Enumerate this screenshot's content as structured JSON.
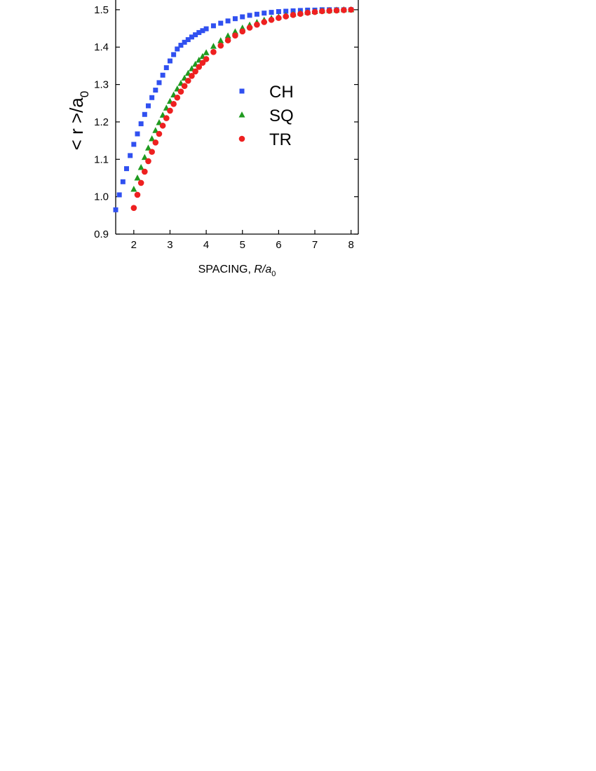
{
  "chart_data": {
    "type": "scatter",
    "x_label": {
      "text": "SPACING, ",
      "italic": "R/a",
      "subscript": "0"
    },
    "y_label": {
      "text": "< r >/a",
      "subscript": "0"
    },
    "xlim": [
      1.5,
      8.2
    ],
    "ylim": [
      0.9,
      1.526
    ],
    "xticks": [
      2,
      3,
      4,
      5,
      6,
      7,
      8
    ],
    "yticks": [
      0.9,
      {
        "value": 1,
        "label": "1.0"
      },
      1.1,
      1.2,
      1.3,
      1.4,
      1.5
    ],
    "series": [
      {
        "name": "CH",
        "color": "#3050f0",
        "marker": "square",
        "x": [
          1.5,
          1.6,
          1.7,
          1.8,
          1.9,
          2.0,
          2.1,
          2.2,
          2.3,
          2.4,
          2.5,
          2.6,
          2.7,
          2.8,
          2.9,
          3.0,
          3.1,
          3.2,
          3.3,
          3.4,
          3.5,
          3.6,
          3.7,
          3.8,
          3.9,
          4.0,
          4.2,
          4.4,
          4.6,
          4.8,
          5.0,
          5.2,
          5.4,
          5.6,
          5.8,
          6.0,
          6.2,
          6.4,
          6.6,
          6.8,
          7.0,
          7.2,
          7.4,
          7.6,
          7.8,
          8.0
        ],
        "values": [
          0.965,
          1.005,
          1.04,
          1.075,
          1.11,
          1.14,
          1.168,
          1.195,
          1.22,
          1.243,
          1.265,
          1.285,
          1.305,
          1.325,
          1.345,
          1.363,
          1.38,
          1.395,
          1.405,
          1.413,
          1.42,
          1.427,
          1.433,
          1.439,
          1.444,
          1.449,
          1.457,
          1.464,
          1.47,
          1.476,
          1.481,
          1.485,
          1.488,
          1.491,
          1.493,
          1.495,
          1.496,
          1.497,
          1.498,
          1.499,
          1.499,
          1.5,
          1.5,
          1.5,
          1.5,
          1.5
        ]
      },
      {
        "name": "SQ",
        "color": "#1f9a1f",
        "marker": "triangle",
        "x": [
          2.0,
          2.1,
          2.2,
          2.3,
          2.4,
          2.5,
          2.6,
          2.7,
          2.8,
          2.9,
          3.0,
          3.1,
          3.2,
          3.3,
          3.4,
          3.5,
          3.6,
          3.7,
          3.8,
          3.9,
          4.0,
          4.2,
          4.4,
          4.6,
          4.8,
          5.0,
          5.2,
          5.4,
          5.6,
          5.8,
          6.0,
          6.2,
          6.4,
          6.6,
          6.8,
          7.0,
          7.2,
          7.4,
          7.6,
          7.8,
          8.0
        ],
        "values": [
          1.02,
          1.05,
          1.078,
          1.105,
          1.13,
          1.155,
          1.177,
          1.198,
          1.218,
          1.237,
          1.255,
          1.272,
          1.288,
          1.303,
          1.317,
          1.33,
          1.342,
          1.354,
          1.365,
          1.375,
          1.385,
          1.402,
          1.417,
          1.43,
          1.441,
          1.451,
          1.459,
          1.466,
          1.472,
          1.477,
          1.481,
          1.485,
          1.488,
          1.491,
          1.493,
          1.495,
          1.497,
          1.498,
          1.499,
          1.5,
          1.5
        ]
      },
      {
        "name": "TR",
        "color": "#ee2020",
        "marker": "circle",
        "x": [
          2.0,
          2.1,
          2.2,
          2.3,
          2.4,
          2.5,
          2.6,
          2.7,
          2.8,
          2.9,
          3.0,
          3.1,
          3.2,
          3.3,
          3.4,
          3.5,
          3.6,
          3.7,
          3.8,
          3.9,
          4.0,
          4.2,
          4.4,
          4.6,
          4.8,
          5.0,
          5.2,
          5.4,
          5.6,
          5.8,
          6.0,
          6.2,
          6.4,
          6.6,
          6.8,
          7.0,
          7.2,
          7.4,
          7.6,
          7.8,
          8.0
        ],
        "values": [
          0.97,
          1.005,
          1.037,
          1.067,
          1.095,
          1.12,
          1.145,
          1.168,
          1.19,
          1.21,
          1.23,
          1.248,
          1.265,
          1.281,
          1.296,
          1.31,
          1.323,
          1.335,
          1.347,
          1.358,
          1.368,
          1.387,
          1.404,
          1.418,
          1.431,
          1.442,
          1.452,
          1.46,
          1.467,
          1.473,
          1.478,
          1.482,
          1.486,
          1.489,
          1.492,
          1.494,
          1.496,
          1.497,
          1.498,
          1.499,
          1.5
        ]
      }
    ]
  }
}
